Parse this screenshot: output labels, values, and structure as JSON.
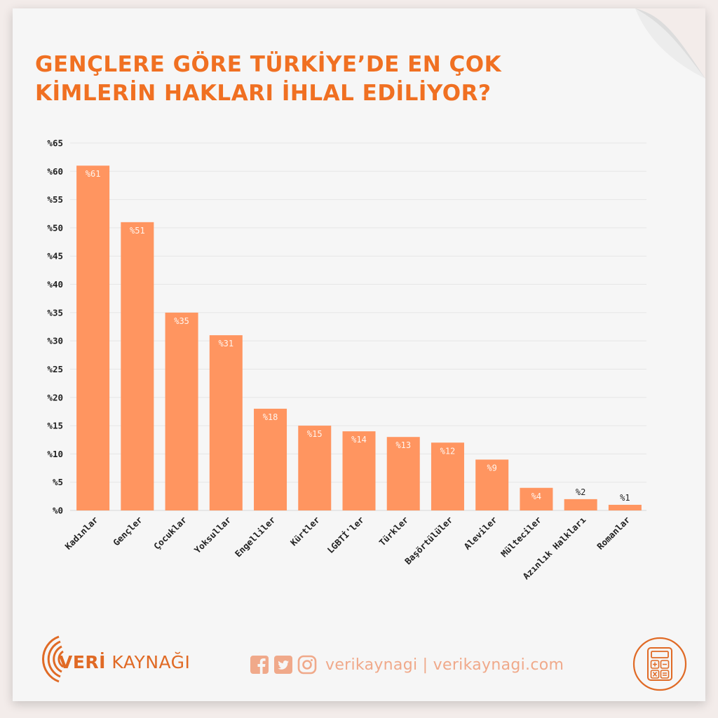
{
  "title": "GENÇLERE GÖRE TÜRKİYE’DE EN ÇOK\nKİMLERİN HAKLARI İHLAL EDİLİYOR?",
  "colors": {
    "bar": "#ff9560",
    "accent": "#f07022",
    "brand": "#e06a25",
    "social": "#f0a98a"
  },
  "footer": {
    "brand_main": "VERİ",
    "brand_rest": " KAYNAĞI",
    "handle": "verikaynagi | verikaynagi.com",
    "icons": [
      "facebook-icon",
      "twitter-icon",
      "instagram-icon",
      "calculator-icon"
    ]
  },
  "chart_data": {
    "type": "bar",
    "categories": [
      "Kadınlar",
      "Gençler",
      "Çocuklar",
      "Yoksullar",
      "Engelliler",
      "Kürtler",
      "LGBTİ'ler",
      "Türkler",
      "Başörtülüler",
      "Aleviler",
      "Mülteciler",
      "Azınlık Halkları",
      "Romanlar"
    ],
    "values": [
      61,
      51,
      35,
      31,
      18,
      15,
      14,
      13,
      12,
      9,
      4,
      2,
      1
    ],
    "value_labels": [
      "%61",
      "%51",
      "%35",
      "%31",
      "%18",
      "%15",
      "%14",
      "%13",
      "%12",
      "%9",
      "%4",
      "%2",
      "%1"
    ],
    "y_ticks": [
      "%0",
      "%5",
      "%10",
      "%15",
      "%20",
      "%25",
      "%30",
      "%35",
      "%40",
      "%45",
      "%50",
      "%55",
      "%60",
      "%65"
    ],
    "ylim": [
      0,
      65
    ],
    "grid": true,
    "legend": "none"
  }
}
